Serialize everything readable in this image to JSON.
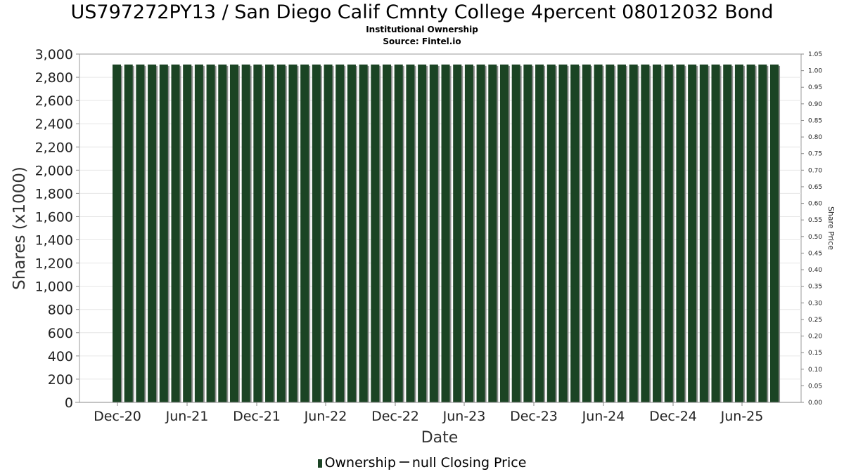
{
  "chart_data": {
    "type": "bar",
    "title": "US797272PY13 / San Diego Calif Cmnty College 4percent 08012032 Bond",
    "subtitles": [
      "Institutional Ownership",
      "Source: Fintel.io"
    ],
    "xlabel": "Date",
    "ylabel": "Shares (x1000)",
    "y2label": "Share Price",
    "ylim": [
      0,
      3000
    ],
    "y_ticks": [
      "0",
      "200",
      "400",
      "600",
      "800",
      "1,000",
      "1,200",
      "1,400",
      "1,600",
      "1,800",
      "2,000",
      "2,200",
      "2,400",
      "2,600",
      "2,800",
      "3,000"
    ],
    "y2lim": [
      0,
      1.05
    ],
    "y2_ticks": [
      "0.00",
      "0.05",
      "0.10",
      "0.15",
      "0.20",
      "0.25",
      "0.30",
      "0.35",
      "0.40",
      "0.45",
      "0.50",
      "0.55",
      "0.60",
      "0.65",
      "0.70",
      "0.75",
      "0.80",
      "0.85",
      "0.90",
      "0.95",
      "1.00",
      "1.05"
    ],
    "x_ticks": [
      "Dec-20",
      "Jun-21",
      "Dec-21",
      "Jun-22",
      "Dec-22",
      "Jun-23",
      "Dec-23",
      "Jun-24",
      "Dec-24",
      "Jun-25"
    ],
    "grid": true,
    "legend_placement": "bottom",
    "bar_color": "#1b4424",
    "series": [
      {
        "name": "Ownership",
        "x_start": "2020-12",
        "x_end": "2025-08",
        "values": [
          2910,
          2910,
          2910,
          2910,
          2910,
          2910,
          2910,
          2910,
          2910,
          2910,
          2910,
          2910,
          2910,
          2910,
          2910,
          2910,
          2910,
          2910,
          2910,
          2910,
          2910,
          2910,
          2910,
          2910,
          2910,
          2910,
          2910,
          2910,
          2910,
          2910,
          2910,
          2910,
          2910,
          2910,
          2910,
          2910,
          2910,
          2910,
          2910,
          2910,
          2910,
          2910,
          2910,
          2910,
          2910,
          2910,
          2910,
          2910,
          2910,
          2910,
          2910,
          2910,
          2910,
          2910,
          2910,
          2910,
          2910
        ]
      }
    ],
    "legend": [
      {
        "label": "Ownership",
        "kind": "bar"
      },
      {
        "label": "null Closing Price",
        "kind": "line"
      }
    ]
  }
}
